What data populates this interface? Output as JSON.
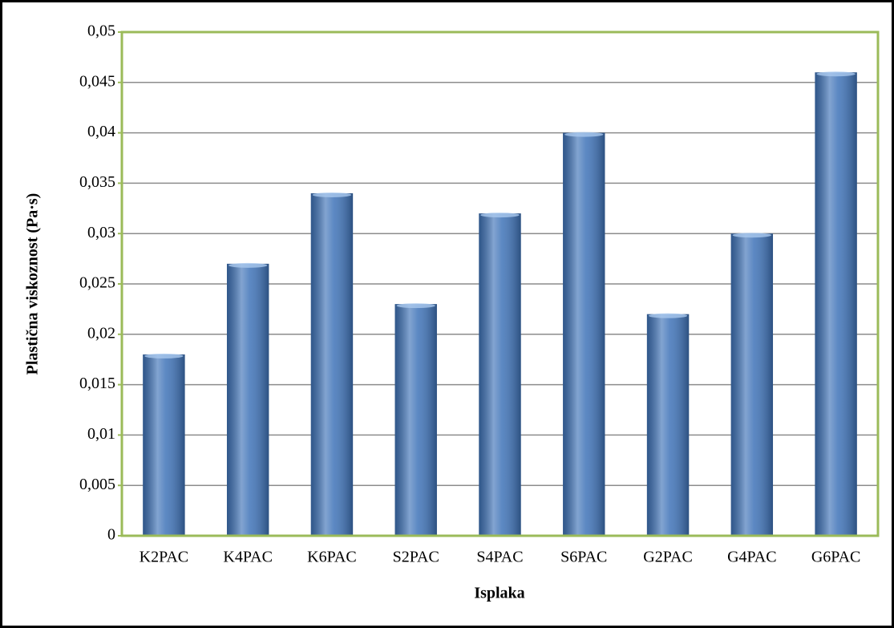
{
  "chart_data": {
    "type": "bar",
    "x_label": "Isplaka",
    "y_label": "Plastična viskoznost (Pa·s)",
    "categories": [
      "K2PAC",
      "K4PAC",
      "K6PAC",
      "S2PAC",
      "S4PAC",
      "S6PAC",
      "G2PAC",
      "G4PAC",
      "G6PAC"
    ],
    "values": [
      0.018,
      0.027,
      0.034,
      0.023,
      0.032,
      0.04,
      0.022,
      0.03,
      0.046
    ],
    "color": "#3f73b8",
    "ylim": [
      0,
      0.05
    ],
    "yticks": [
      0,
      {
        "value": 0.005,
        "label": "0,005"
      },
      {
        "value": 0.01,
        "label": "0,01"
      },
      {
        "value": 0.015,
        "label": "0,015"
      },
      {
        "value": 0.02,
        "label": "0,02"
      },
      {
        "value": 0.025,
        "label": "0,025"
      },
      {
        "value": 0.03,
        "label": "0,03"
      },
      {
        "value": 0.035,
        "label": "0,035"
      },
      {
        "value": 0.04,
        "label": "0,04"
      },
      {
        "value": 0.045,
        "label": "0,045"
      },
      {
        "value": 0.05,
        "label": "0,05"
      }
    ],
    "grid": true
  }
}
